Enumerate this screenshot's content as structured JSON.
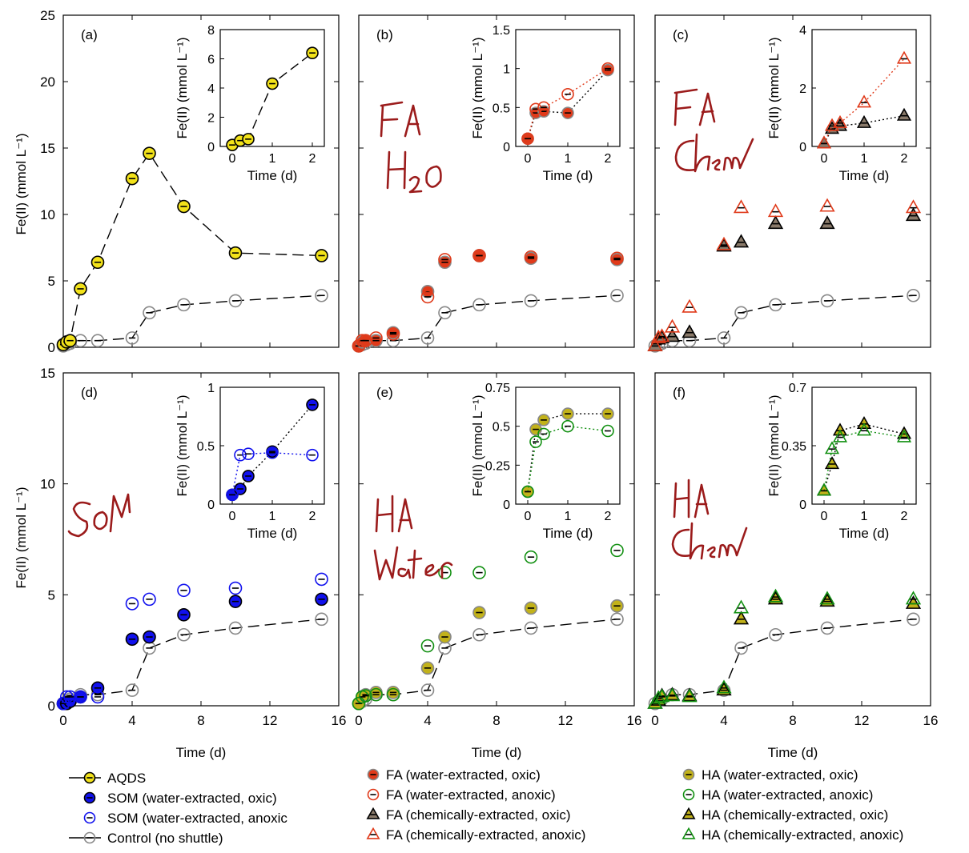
{
  "figure": {
    "xlabel": "Time (d)",
    "ylabel": "Fe(II) (mmol L⁻¹)",
    "inset_ylabel": "Fe(II) (mmol L⁻¹)",
    "inset_xlabel": "Time (d)"
  },
  "colors": {
    "aqds": "#f2e21a",
    "som": "#1111ee",
    "fa": "#e03a1a",
    "fa_chem_fill": "#8a7a6a",
    "ha_fill": "#c2b21a",
    "ha_line": "#129012",
    "control": "#888888",
    "annotation": "#9b1b1b"
  },
  "legend": {
    "col1": [
      "AQDS",
      "SOM (water-extracted, oxic)",
      "SOM (water-extracted, anoxic",
      "Control (no shuttle)"
    ],
    "col2": [
      "FA (water-extracted, oxic)",
      "FA (water-extracted, anoxic)",
      "FA (chemically-extracted, oxic)",
      "FA (chemically-extracted, anoxic)"
    ],
    "col3": [
      "HA (water-extracted, oxic)",
      "HA (water-extracted, anoxic)",
      "HA (chemically-extracted, oxic)",
      "HA (chemically-extracted, anoxic)"
    ]
  },
  "chart_data": [
    {
      "type": "scatter",
      "panel": "(a)",
      "annotation": "",
      "xlim": [
        0,
        16
      ],
      "ylim": [
        0,
        25
      ],
      "xticks": [],
      "yticks": [
        0,
        5,
        10,
        15,
        20,
        25
      ],
      "series": [
        {
          "name": "Control (no shuttle)",
          "x": [
            0,
            0.2,
            0.4,
            1,
            2,
            4,
            5,
            7,
            10,
            15
          ],
          "y": [
            0.1,
            0.2,
            0.3,
            0.5,
            0.5,
            0.7,
            2.6,
            3.2,
            3.5,
            3.9
          ]
        },
        {
          "name": "AQDS",
          "x": [
            0,
            0.2,
            0.4,
            1,
            2,
            4,
            5,
            7,
            10,
            15
          ],
          "y": [
            0.2,
            0.4,
            0.5,
            4.4,
            6.4,
            12.7,
            14.6,
            10.6,
            7.1,
            6.9
          ]
        }
      ],
      "inset": {
        "xlim": [
          -0.3,
          2.3
        ],
        "ylim": [
          0,
          8
        ],
        "xticks": [
          0,
          1,
          2
        ],
        "yticks": [
          0,
          2,
          4,
          6,
          8
        ],
        "series": [
          {
            "name": "AQDS",
            "x": [
              0,
              0.2,
              0.4,
              1,
              2
            ],
            "y": [
              0.1,
              0.4,
              0.5,
              4.3,
              6.4
            ]
          }
        ]
      }
    },
    {
      "type": "scatter",
      "panel": "(b)",
      "annotation": "FA H₂O",
      "xlim": [
        0,
        16
      ],
      "ylim": [
        0,
        25
      ],
      "xticks": [],
      "yticks": [],
      "series": [
        {
          "name": "Control (no shuttle)",
          "x": [
            0,
            0.2,
            0.4,
            1,
            2,
            4,
            5,
            7,
            10,
            15
          ],
          "y": [
            0.1,
            0.2,
            0.3,
            0.5,
            0.5,
            0.7,
            2.6,
            3.2,
            3.5,
            3.9
          ]
        },
        {
          "name": "FA (water-extracted, oxic)",
          "x": [
            0,
            0.2,
            0.4,
            1,
            2,
            4,
            5,
            7,
            10,
            15
          ],
          "y": [
            0.1,
            0.4,
            0.5,
            0.5,
            1.1,
            4.2,
            6.4,
            6.9,
            6.7,
            6.6
          ]
        },
        {
          "name": "FA (water-extracted, anoxic)",
          "x": [
            0,
            0.2,
            0.4,
            1,
            2,
            4,
            5,
            7,
            10,
            15
          ],
          "y": [
            0.1,
            0.5,
            0.5,
            0.7,
            1.0,
            3.8,
            6.6,
            6.9,
            6.8,
            6.7
          ]
        }
      ],
      "inset": {
        "xlim": [
          -0.3,
          2.3
        ],
        "ylim": [
          0,
          1.5
        ],
        "xticks": [
          0,
          1,
          2
        ],
        "yticks": [
          0,
          0.5,
          1,
          1.5
        ],
        "series": [
          {
            "name": "FA (water-extracted, oxic)",
            "x": [
              0,
              0.2,
              0.4,
              1,
              2
            ],
            "y": [
              0.1,
              0.43,
              0.45,
              0.43,
              0.98
            ]
          },
          {
            "name": "FA (water-extracted, anoxic)",
            "x": [
              0,
              0.2,
              0.4,
              1,
              2
            ],
            "y": [
              0.1,
              0.48,
              0.5,
              0.67,
              1.0
            ]
          }
        ]
      }
    },
    {
      "type": "scatter",
      "panel": "(c)",
      "annotation": "FA chem",
      "xlim": [
        0,
        16
      ],
      "ylim": [
        0,
        25
      ],
      "xticks": [],
      "yticks": [],
      "series": [
        {
          "name": "Control (no shuttle)",
          "x": [
            0,
            0.2,
            0.4,
            1,
            2,
            4,
            5,
            7,
            10,
            15
          ],
          "y": [
            0.1,
            0.2,
            0.3,
            0.5,
            0.5,
            0.7,
            2.6,
            3.2,
            3.5,
            3.9
          ]
        },
        {
          "name": "FA (chemically-extracted, oxic)",
          "x": [
            0,
            0.2,
            0.4,
            1,
            2,
            4,
            5,
            7,
            10,
            15
          ],
          "y": [
            0.1,
            0.6,
            0.7,
            0.8,
            1.1,
            7.6,
            7.9,
            9.3,
            9.3,
            9.9
          ]
        },
        {
          "name": "FA (chemically-extracted, anoxic)",
          "x": [
            0,
            0.2,
            0.4,
            1,
            2,
            4,
            5,
            7,
            10,
            15
          ],
          "y": [
            0.1,
            0.7,
            0.8,
            1.5,
            3.0,
            7.7,
            10.5,
            10.2,
            10.6,
            10.5
          ]
        }
      ],
      "inset": {
        "xlim": [
          -0.3,
          2.3
        ],
        "ylim": [
          0,
          4
        ],
        "xticks": [
          0,
          1,
          2
        ],
        "yticks": [
          0,
          2,
          4
        ],
        "series": [
          {
            "name": "FA (chemically-extracted, oxic)",
            "x": [
              0,
              0.2,
              0.4,
              1,
              2
            ],
            "y": [
              0.1,
              0.6,
              0.7,
              0.8,
              1.05
            ]
          },
          {
            "name": "FA (chemically-extracted, anoxic)",
            "x": [
              0,
              0.2,
              0.4,
              1,
              2
            ],
            "y": [
              0.1,
              0.7,
              0.8,
              1.5,
              3.0
            ]
          }
        ]
      }
    },
    {
      "type": "scatter",
      "panel": "(d)",
      "annotation": "SOM",
      "xlim": [
        0,
        16
      ],
      "ylim": [
        0,
        15
      ],
      "xticks": [
        0,
        4,
        8,
        12,
        16
      ],
      "yticks": [
        0,
        5,
        10,
        15
      ],
      "series": [
        {
          "name": "Control (no shuttle)",
          "x": [
            0,
            0.2,
            0.4,
            1,
            2,
            4,
            5,
            7,
            10,
            15
          ],
          "y": [
            0.1,
            0.2,
            0.3,
            0.5,
            0.5,
            0.7,
            2.6,
            3.2,
            3.5,
            3.9
          ]
        },
        {
          "name": "SOM (water-extracted, oxic)",
          "x": [
            0,
            0.2,
            0.4,
            1,
            2,
            4,
            5,
            7,
            10,
            15
          ],
          "y": [
            0.1,
            0.1,
            0.2,
            0.4,
            0.8,
            3.0,
            3.1,
            4.1,
            4.7,
            4.8
          ]
        },
        {
          "name": "SOM (water-extracted, anoxic",
          "x": [
            0,
            0.2,
            0.4,
            1,
            2,
            4,
            5,
            7,
            10,
            15
          ],
          "y": [
            0.1,
            0.4,
            0.4,
            0.4,
            0.4,
            4.6,
            4.8,
            5.2,
            5.3,
            5.7
          ]
        }
      ],
      "inset": {
        "xlim": [
          -0.3,
          2.3
        ],
        "ylim": [
          0,
          1
        ],
        "xticks": [
          0,
          1,
          2
        ],
        "yticks": [
          0,
          0.5,
          1
        ],
        "series": [
          {
            "name": "SOM (water-extracted, oxic)",
            "x": [
              0,
              0.2,
              0.4,
              1,
              2
            ],
            "y": [
              0.08,
              0.13,
              0.24,
              0.45,
              0.85
            ]
          },
          {
            "name": "SOM (water-extracted, anoxic",
            "x": [
              0,
              0.2,
              0.4,
              1,
              2
            ],
            "y": [
              0.08,
              0.42,
              0.43,
              0.44,
              0.42
            ]
          }
        ]
      }
    },
    {
      "type": "scatter",
      "panel": "(e)",
      "annotation": "HA Water",
      "xlim": [
        0,
        16
      ],
      "ylim": [
        0,
        15
      ],
      "xticks": [
        0,
        4,
        8,
        12,
        16
      ],
      "yticks": [],
      "series": [
        {
          "name": "Control (no shuttle)",
          "x": [
            0,
            0.2,
            0.4,
            1,
            2,
            4,
            5,
            7,
            10,
            15
          ],
          "y": [
            0.1,
            0.2,
            0.3,
            0.5,
            0.5,
            0.7,
            2.6,
            3.2,
            3.5,
            3.9
          ]
        },
        {
          "name": "HA (water-extracted, oxic)",
          "x": [
            0,
            0.2,
            0.4,
            1,
            2,
            4,
            5,
            7,
            10,
            15
          ],
          "y": [
            0.1,
            0.4,
            0.5,
            0.6,
            0.6,
            1.7,
            3.1,
            4.2,
            4.4,
            4.5
          ]
        },
        {
          "name": "HA (water-extracted, anoxic)",
          "x": [
            0,
            0.2,
            0.4,
            1,
            2,
            4,
            5,
            7,
            10,
            15
          ],
          "y": [
            0.1,
            0.4,
            0.45,
            0.5,
            0.5,
            2.7,
            6.0,
            6.0,
            6.7,
            7.0
          ]
        }
      ],
      "inset": {
        "xlim": [
          -0.3,
          2.3
        ],
        "ylim": [
          0,
          0.75
        ],
        "xticks": [
          0,
          1,
          2
        ],
        "yticks": [
          0,
          0.25,
          0.5,
          0.75
        ],
        "series": [
          {
            "name": "HA (water-extracted, oxic)",
            "x": [
              0,
              0.2,
              0.4,
              1,
              2
            ],
            "y": [
              0.08,
              0.48,
              0.54,
              0.58,
              0.58
            ]
          },
          {
            "name": "HA (water-extracted, anoxic)",
            "x": [
              0,
              0.2,
              0.4,
              1,
              2
            ],
            "y": [
              0.08,
              0.4,
              0.45,
              0.5,
              0.47
            ]
          }
        ]
      }
    },
    {
      "type": "scatter",
      "panel": "(f)",
      "annotation": "HA chem",
      "xlim": [
        0,
        16
      ],
      "ylim": [
        0,
        15
      ],
      "xticks": [
        0,
        4,
        8,
        12,
        16
      ],
      "yticks": [],
      "series": [
        {
          "name": "Control (no shuttle)",
          "x": [
            0,
            0.2,
            0.4,
            1,
            2,
            4,
            5,
            7,
            10,
            15
          ],
          "y": [
            0.1,
            0.2,
            0.3,
            0.5,
            0.5,
            0.7,
            2.6,
            3.2,
            3.5,
            3.9
          ]
        },
        {
          "name": "HA (chemically-extracted, oxic)",
          "x": [
            0,
            0.2,
            0.4,
            1,
            2,
            4,
            5,
            7,
            10,
            15
          ],
          "y": [
            0.1,
            0.24,
            0.44,
            0.48,
            0.44,
            0.7,
            3.9,
            4.8,
            4.7,
            4.6
          ]
        },
        {
          "name": "HA (chemically-extracted, anoxic)",
          "x": [
            0,
            0.2,
            0.4,
            1,
            2,
            4,
            5,
            7,
            10,
            15
          ],
          "y": [
            0.1,
            0.33,
            0.4,
            0.44,
            0.4,
            0.8,
            4.4,
            4.9,
            4.8,
            4.8
          ]
        }
      ],
      "inset": {
        "xlim": [
          -0.3,
          2.3
        ],
        "ylim": [
          0,
          0.7
        ],
        "xticks": [
          0,
          1,
          2
        ],
        "yticks": [
          0,
          0.35,
          0.7
        ],
        "series": [
          {
            "name": "HA (chemically-extracted, oxic)",
            "x": [
              0,
              0.2,
              0.4,
              1,
              2
            ],
            "y": [
              0.08,
              0.24,
              0.44,
              0.48,
              0.42
            ]
          },
          {
            "name": "HA (chemically-extracted, anoxic)",
            "x": [
              0,
              0.2,
              0.4,
              1,
              2
            ],
            "y": [
              0.08,
              0.33,
              0.4,
              0.44,
              0.4
            ]
          }
        ]
      }
    }
  ]
}
